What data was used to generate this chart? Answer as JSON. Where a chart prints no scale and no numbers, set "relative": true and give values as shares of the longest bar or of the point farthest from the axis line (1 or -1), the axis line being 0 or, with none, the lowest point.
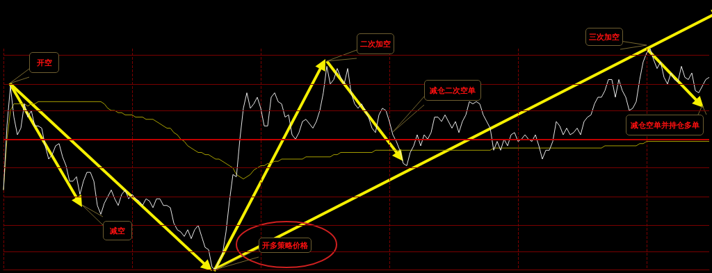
{
  "chart_data": {
    "type": "line",
    "relative": true,
    "categories": [
      null,
      null,
      null,
      null,
      null,
      null,
      null,
      null,
      null,
      null,
      null,
      null,
      null,
      null,
      null,
      null,
      null,
      null,
      null,
      null,
      null,
      null,
      null,
      null,
      null,
      null,
      null,
      null,
      null,
      null,
      null,
      null,
      null,
      null,
      null,
      null,
      null,
      null,
      null,
      null,
      null,
      null,
      null,
      null,
      null,
      null,
      null,
      null,
      null,
      null,
      null,
      null,
      null,
      null,
      null,
      null,
      null,
      null,
      null,
      null,
      null,
      null,
      null,
      null,
      null,
      null,
      null,
      null,
      null,
      null,
      null,
      null,
      null,
      null,
      null,
      null,
      null,
      null,
      null,
      null,
      null,
      null,
      null,
      null,
      null,
      null,
      null,
      null,
      null,
      null,
      null,
      null,
      null,
      null,
      null,
      null,
      null,
      null,
      null,
      null,
      null,
      null,
      null,
      null,
      null,
      null,
      null,
      null,
      null,
      null,
      null,
      null,
      null,
      null,
      null,
      null,
      null,
      null,
      null,
      null,
      null,
      null,
      null,
      null,
      null,
      null,
      null,
      null,
      null,
      null,
      null,
      null,
      null,
      null,
      null,
      null,
      null,
      null,
      null,
      null,
      null,
      null,
      null,
      null,
      null,
      null,
      null,
      null,
      null,
      null,
      null,
      null,
      null,
      null,
      null,
      null,
      null,
      null,
      null,
      null,
      null,
      null,
      null,
      null,
      null,
      null,
      null,
      null,
      null,
      null,
      null,
      null,
      null,
      null,
      null,
      null,
      null,
      null,
      null,
      null,
      null,
      null,
      null,
      null,
      null,
      null,
      null,
      null,
      null,
      null,
      null,
      null,
      null,
      null,
      null,
      null,
      null,
      null,
      null,
      null,
      null,
      null,
      null,
      null
    ],
    "series": [
      {
        "color": "#e8e8e8",
        "values": [
          0.36,
          0.65,
          0.83,
          0.69,
          0.61,
          0.64,
          0.75,
          0.69,
          0.72,
          0.65,
          0.65,
          0.64,
          0.56,
          0.5,
          0.52,
          0.56,
          0.57,
          0.51,
          0.47,
          0.4,
          0.4,
          0.42,
          0.34,
          0.4,
          0.44,
          0.44,
          0.4,
          0.29,
          0.25,
          0.3,
          0.33,
          0.36,
          0.32,
          0.29,
          0.34,
          0.36,
          0.32,
          0.34,
          0.32,
          0.31,
          0.29,
          0.32,
          0.31,
          0.28,
          0.32,
          0.32,
          0.29,
          0.29,
          0.28,
          0.21,
          0.18,
          0.17,
          0.15,
          0.18,
          0.14,
          0.18,
          0.2,
          0.15,
          0.1,
          0.09,
          0.01,
          0,
          0.04,
          0.07,
          0.17,
          0.31,
          0.43,
          0.42,
          0.59,
          0.73,
          0.8,
          0.73,
          0.75,
          0.78,
          0.73,
          0.65,
          0.65,
          0.78,
          0.8,
          0.76,
          0.75,
          0.69,
          0.7,
          0.61,
          0.59,
          0.62,
          0.67,
          0.68,
          0.66,
          0.64,
          0.67,
          0.72,
          0.8,
          0.92,
          0.84,
          0.86,
          0.91,
          0.87,
          0.84,
          0.91,
          0.8,
          0.75,
          0.73,
          0.75,
          0.72,
          0.69,
          0.64,
          0.62,
          0.7,
          0.73,
          0.72,
          0.67,
          0.61,
          0.58,
          0.54,
          0.48,
          0.47,
          0.53,
          0.56,
          0.61,
          0.56,
          0.61,
          0.59,
          0.62,
          0.69,
          0.69,
          0.67,
          0.7,
          0.67,
          0.64,
          0.67,
          0.62,
          0.67,
          0.7,
          0.76,
          0.75,
          0.76,
          0.75,
          0.7,
          0.67,
          0.64,
          0.54,
          0.58,
          0.54,
          0.59,
          0.56,
          0.61,
          0.62,
          0.58,
          0.59,
          0.61,
          0.59,
          0.58,
          0.61,
          0.56,
          0.5,
          0.54,
          0.54,
          0.58,
          0.67,
          0.65,
          0.61,
          0.64,
          0.61,
          0.62,
          0.64,
          0.61,
          0.67,
          0.69,
          0.7,
          0.75,
          0.78,
          0.78,
          0.81,
          0.86,
          0.86,
          0.78,
          0.86,
          0.81,
          0.78,
          0.72,
          0.73,
          0.76,
          0.86,
          0.94,
          0.98,
          1,
          0.95,
          0.91,
          0.94,
          0.87,
          0.84,
          0.89,
          0.86,
          0.85,
          0.92,
          0.87,
          0.86,
          0.89,
          0.81,
          0.8,
          0.83,
          0.86,
          0.87
        ]
      },
      {
        "color": "#a8a000",
        "values": [
          0.36,
          0.59,
          0.72,
          0.75,
          0.75,
          0.75,
          0.75,
          0.74,
          0.75,
          0.75,
          0.76,
          0.76,
          0.76,
          0.76,
          0.76,
          0.76,
          0.76,
          0.76,
          0.76,
          0.76,
          0.76,
          0.76,
          0.76,
          0.76,
          0.76,
          0.76,
          0.76,
          0.76,
          0.76,
          0.75,
          0.73,
          0.72,
          0.72,
          0.71,
          0.71,
          0.7,
          0.7,
          0.7,
          0.69,
          0.69,
          0.69,
          0.68,
          0.68,
          0.68,
          0.67,
          0.66,
          0.65,
          0.64,
          0.64,
          0.62,
          0.61,
          0.59,
          0.58,
          0.56,
          0.55,
          0.54,
          0.53,
          0.53,
          0.52,
          0.52,
          0.51,
          0.5,
          0.5,
          0.49,
          0.48,
          0.47,
          0.46,
          0.43,
          0.42,
          0.41,
          0.42,
          0.43,
          0.45,
          0.46,
          0.47,
          0.47,
          0.48,
          0.48,
          0.49,
          0.49,
          0.5,
          0.5,
          0.5,
          0.5,
          0.5,
          0.5,
          0.5,
          0.51,
          0.51,
          0.51,
          0.51,
          0.51,
          0.51,
          0.51,
          0.51,
          0.52,
          0.52,
          0.53,
          0.53,
          0.53,
          0.53,
          0.53,
          0.53,
          0.53,
          0.53,
          0.53,
          0.53,
          0.54,
          0.54,
          0.54,
          0.54,
          0.54,
          0.54,
          0.54,
          0.54,
          0.54,
          0.54,
          0.54,
          0.54,
          0.54,
          0.54,
          0.54,
          0.54,
          0.54,
          0.54,
          0.54,
          0.54,
          0.54,
          0.54,
          0.54,
          0.54,
          0.54,
          0.54,
          0.54,
          0.54,
          0.54,
          0.54,
          0.54,
          0.54,
          0.54,
          0.54,
          0.55,
          0.55,
          0.55,
          0.55,
          0.55,
          0.55,
          0.55,
          0.55,
          0.55,
          0.55,
          0.55,
          0.55,
          0.55,
          0.55,
          0.55,
          0.55,
          0.55,
          0.55,
          0.55,
          0.55,
          0.55,
          0.55,
          0.55,
          0.55,
          0.55,
          0.55,
          0.55,
          0.55,
          0.55,
          0.55,
          0.55,
          0.55,
          0.56,
          0.56,
          0.56,
          0.56,
          0.56,
          0.56,
          0.56,
          0.56,
          0.56,
          0.56,
          0.57,
          0.57,
          0.58,
          0.58,
          0.58,
          0.58,
          0.58,
          0.58,
          0.58,
          0.58,
          0.58,
          0.58,
          0.58,
          0.58,
          0.58,
          0.58,
          0.58,
          0.58,
          0.58,
          0.58,
          0.58
        ]
      }
    ],
    "grid": "x",
    "ref_lines": [
      {
        "axis": "y",
        "value": 0.59,
        "color": "#c00000"
      },
      {
        "axis": "y",
        "value": 0.97,
        "color": "#7a0000"
      },
      {
        "axis": "y",
        "value": 0.84,
        "color": "#7a0000"
      },
      {
        "axis": "y",
        "value": 0.72,
        "color": "#7a0000"
      },
      {
        "axis": "y",
        "value": 0.46,
        "color": "#7a0000"
      },
      {
        "axis": "y",
        "value": 0.33,
        "color": "#7a0000"
      },
      {
        "axis": "y",
        "value": 0.2,
        "color": "#7a0000"
      },
      {
        "axis": "y",
        "value": 0.08,
        "color": "#7a0000"
      }
    ],
    "annotations": [
      "开空",
      "二次加空",
      "减仓二次空单",
      "三次加空",
      "减仓空单并持仓多单",
      "减空",
      "开多策略价格"
    ]
  }
}
